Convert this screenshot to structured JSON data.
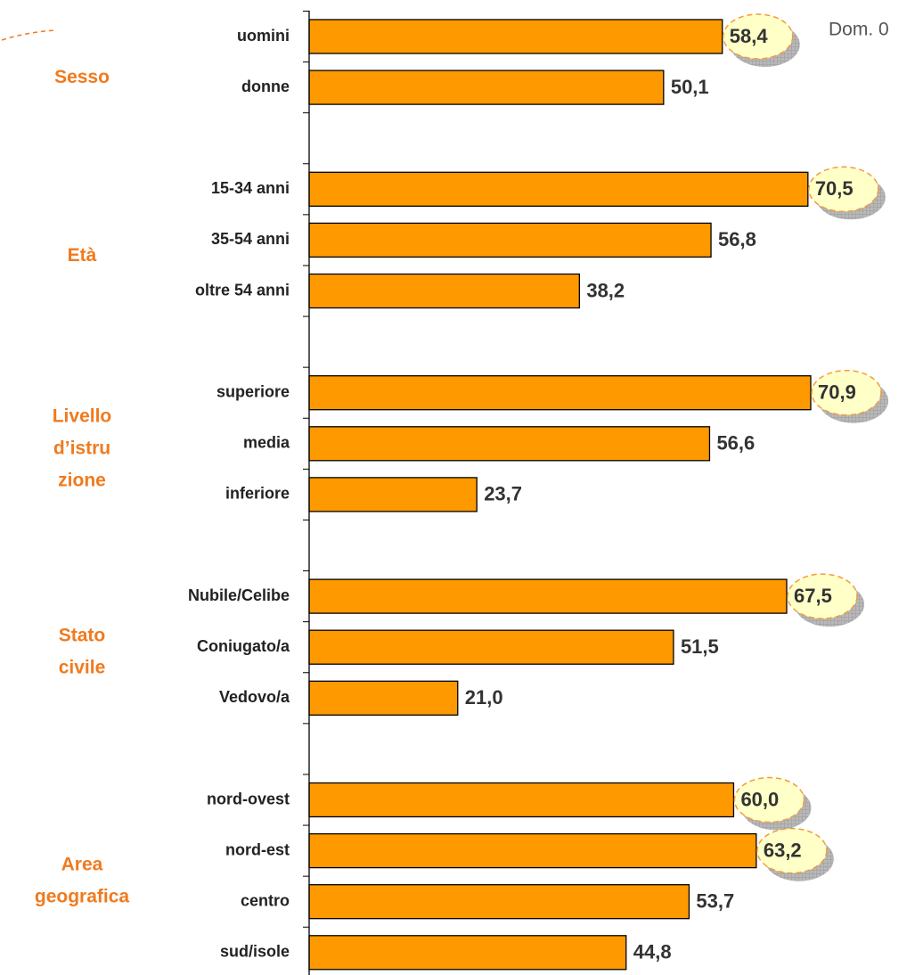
{
  "chart_data": {
    "type": "bar",
    "orientation": "horizontal",
    "color": "#ff9900",
    "note": "Dom. 0",
    "groups": [
      {
        "label": [
          "Sesso"
        ],
        "categories": [
          "uomini",
          "donne"
        ],
        "values": [
          58.4,
          50.1
        ],
        "value_labels": [
          "58,4",
          "50,1"
        ],
        "highlight": [
          true,
          false
        ]
      },
      {
        "label": [
          "Età"
        ],
        "categories": [
          "15-34 anni",
          "35-54 anni",
          "oltre 54 anni"
        ],
        "values": [
          70.5,
          56.8,
          38.2
        ],
        "value_labels": [
          "70,5",
          "56,8",
          "38,2"
        ],
        "highlight": [
          true,
          false,
          false
        ]
      },
      {
        "label": [
          "Livello",
          "d’istru",
          "zione"
        ],
        "categories": [
          "superiore",
          "media",
          "inferiore"
        ],
        "values": [
          70.9,
          56.6,
          23.7
        ],
        "value_labels": [
          "70,9",
          "56,6",
          "23,7"
        ],
        "highlight": [
          true,
          false,
          false
        ]
      },
      {
        "label": [
          "Stato",
          "civile"
        ],
        "categories": [
          "Nubile/Celibe",
          "Coniugato/a",
          "Vedovo/a"
        ],
        "values": [
          67.5,
          51.5,
          21.0
        ],
        "value_labels": [
          "67,5",
          "51,5",
          "21,0"
        ],
        "highlight": [
          true,
          false,
          false
        ]
      },
      {
        "label": [
          "Area",
          "geografica"
        ],
        "categories": [
          "nord-ovest",
          "nord-est",
          "centro",
          "sud/isole"
        ],
        "values": [
          60.0,
          63.2,
          53.7,
          44.8
        ],
        "value_labels": [
          "60,0",
          "63,2",
          "53,7",
          "44,8"
        ],
        "highlight": [
          true,
          true,
          false,
          false
        ]
      }
    ]
  }
}
